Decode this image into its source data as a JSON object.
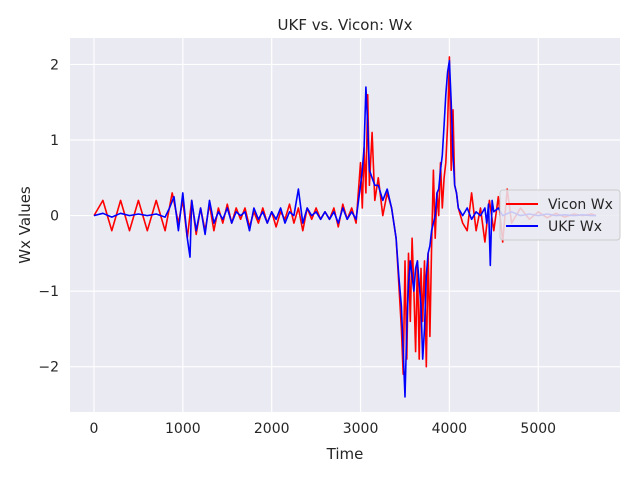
{
  "chart_data": {
    "type": "line",
    "title": "UKF vs. Vicon: Wx",
    "xlabel": "Time",
    "ylabel": "Wx Values",
    "xlim": [
      -270,
      5920
    ],
    "ylim": [
      -2.6,
      2.35
    ],
    "xticks": [
      0,
      1000,
      2000,
      3000,
      4000,
      5000
    ],
    "yticks": [
      -2,
      -1,
      0,
      1,
      2
    ],
    "xtick_labels": [
      "0",
      "1000",
      "2000",
      "3000",
      "4000",
      "5000"
    ],
    "ytick_labels": [
      "−2",
      "−1",
      "0",
      "1",
      "2"
    ],
    "grid": true,
    "legend": {
      "placement": "center-right"
    },
    "series": [
      {
        "name": "Vicon Wx",
        "color": "#ff0000",
        "x": [
          0,
          100,
          200,
          300,
          400,
          500,
          600,
          700,
          800,
          880,
          950,
          1000,
          1050,
          1100,
          1150,
          1200,
          1250,
          1300,
          1350,
          1400,
          1450,
          1500,
          1550,
          1600,
          1650,
          1700,
          1750,
          1800,
          1850,
          1900,
          1950,
          2000,
          2050,
          2100,
          2150,
          2200,
          2250,
          2300,
          2350,
          2400,
          2450,
          2500,
          2550,
          2600,
          2650,
          2700,
          2750,
          2800,
          2850,
          2900,
          2950,
          3000,
          3020,
          3040,
          3060,
          3080,
          3100,
          3130,
          3160,
          3200,
          3250,
          3300,
          3350,
          3400,
          3430,
          3460,
          3480,
          3500,
          3520,
          3540,
          3560,
          3580,
          3600,
          3620,
          3640,
          3660,
          3680,
          3700,
          3720,
          3740,
          3760,
          3780,
          3800,
          3820,
          3840,
          3860,
          3880,
          3900,
          3920,
          3940,
          3960,
          3980,
          4000,
          4020,
          4040,
          4060,
          4080,
          4100,
          4150,
          4200,
          4250,
          4300,
          4350,
          4400,
          4450,
          4500,
          4550,
          4600,
          4650,
          4700,
          4800,
          4900,
          5000,
          5100,
          5200,
          5300,
          5400,
          5500,
          5600,
          5650
        ],
        "y": [
          0.0,
          0.2,
          -0.2,
          0.2,
          -0.2,
          0.2,
          -0.2,
          0.2,
          -0.2,
          0.3,
          -0.1,
          0.2,
          -0.3,
          0.2,
          -0.25,
          0.1,
          -0.2,
          0.15,
          -0.2,
          0.1,
          -0.1,
          0.15,
          -0.1,
          0.1,
          -0.05,
          0.1,
          -0.15,
          0.05,
          -0.1,
          0.1,
          -0.1,
          0.05,
          -0.15,
          0.05,
          -0.05,
          0.15,
          -0.1,
          0.1,
          -0.2,
          0.1,
          -0.05,
          0.1,
          -0.05,
          0.05,
          -0.05,
          0.1,
          -0.15,
          0.15,
          -0.05,
          0.1,
          -0.1,
          0.7,
          0.1,
          0.9,
          0.3,
          1.6,
          0.4,
          1.1,
          0.2,
          0.5,
          0.0,
          0.3,
          0.1,
          -0.3,
          -0.9,
          -1.5,
          -2.1,
          -0.6,
          -1.9,
          -0.5,
          -1.4,
          -0.3,
          -1.0,
          -1.8,
          -0.6,
          -1.9,
          -0.7,
          -1.4,
          -0.6,
          -2.0,
          -0.5,
          -1.6,
          -0.4,
          0.6,
          -0.3,
          0.3,
          0.0,
          0.7,
          0.1,
          0.5,
          0.7,
          1.2,
          2.1,
          0.6,
          1.4,
          0.4,
          0.3,
          0.1,
          -0.1,
          -0.2,
          0.3,
          -0.2,
          0.1,
          -0.35,
          0.2,
          -0.2,
          0.25,
          -0.35,
          0.35,
          -0.1,
          0.1,
          -0.05,
          0.05,
          -0.03,
          0.03,
          -0.02,
          0.02,
          0.0,
          0.02,
          0.0
        ]
      },
      {
        "name": "UKF Wx",
        "color": "#0000ff",
        "x": [
          0,
          100,
          200,
          300,
          400,
          500,
          600,
          700,
          800,
          850,
          900,
          950,
          1000,
          1050,
          1080,
          1100,
          1150,
          1200,
          1250,
          1300,
          1350,
          1400,
          1450,
          1500,
          1550,
          1600,
          1650,
          1700,
          1750,
          1800,
          1850,
          1900,
          1950,
          2000,
          2050,
          2100,
          2150,
          2200,
          2250,
          2300,
          2350,
          2400,
          2450,
          2500,
          2550,
          2600,
          2650,
          2700,
          2750,
          2800,
          2850,
          2900,
          2950,
          3000,
          3020,
          3040,
          3060,
          3080,
          3100,
          3130,
          3160,
          3200,
          3250,
          3300,
          3350,
          3400,
          3430,
          3460,
          3480,
          3500,
          3520,
          3540,
          3560,
          3580,
          3600,
          3620,
          3640,
          3660,
          3680,
          3700,
          3720,
          3740,
          3760,
          3780,
          3800,
          3820,
          3840,
          3860,
          3880,
          3900,
          3920,
          3940,
          3960,
          3980,
          4000,
          4020,
          4040,
          4060,
          4080,
          4100,
          4150,
          4200,
          4250,
          4300,
          4350,
          4400,
          4420,
          4440,
          4460,
          4480,
          4500,
          4550,
          4600,
          4700,
          4800,
          4900,
          5000,
          5100,
          5200,
          5300,
          5400,
          5500,
          5600,
          5650
        ],
        "y": [
          0.0,
          0.03,
          -0.02,
          0.03,
          0.0,
          0.02,
          0.0,
          0.02,
          -0.02,
          0.1,
          0.25,
          -0.2,
          0.3,
          -0.3,
          -0.55,
          0.2,
          -0.2,
          0.1,
          -0.25,
          0.2,
          -0.1,
          0.05,
          -0.05,
          0.1,
          -0.1,
          0.05,
          0.0,
          0.05,
          -0.2,
          0.1,
          -0.05,
          0.05,
          -0.1,
          0.05,
          -0.05,
          0.1,
          -0.1,
          0.05,
          0.0,
          0.35,
          -0.1,
          0.1,
          0.0,
          0.05,
          -0.05,
          0.05,
          -0.05,
          0.05,
          -0.1,
          0.1,
          -0.05,
          0.05,
          -0.05,
          0.4,
          0.6,
          0.9,
          1.7,
          1.2,
          0.6,
          0.5,
          0.4,
          0.4,
          0.2,
          0.35,
          0.1,
          -0.3,
          -0.8,
          -1.2,
          -1.8,
          -2.4,
          -1.5,
          -0.9,
          -0.6,
          -0.8,
          -1.0,
          -0.7,
          -0.6,
          -0.9,
          -1.2,
          -1.9,
          -1.5,
          -0.8,
          -0.5,
          -0.4,
          -0.2,
          -0.1,
          0.0,
          0.3,
          0.35,
          0.6,
          0.8,
          1.2,
          1.6,
          1.9,
          2.05,
          1.5,
          0.8,
          0.4,
          0.3,
          0.1,
          0.0,
          0.1,
          -0.05,
          0.05,
          0.0,
          0.1,
          -0.1,
          0.15,
          -0.66,
          0.2,
          0.05,
          0.1,
          0.0,
          0.05,
          0.0,
          0.02,
          0.0,
          0.02,
          0.0,
          0.01,
          0.0,
          0.01,
          0.0,
          0.0
        ]
      }
    ]
  }
}
